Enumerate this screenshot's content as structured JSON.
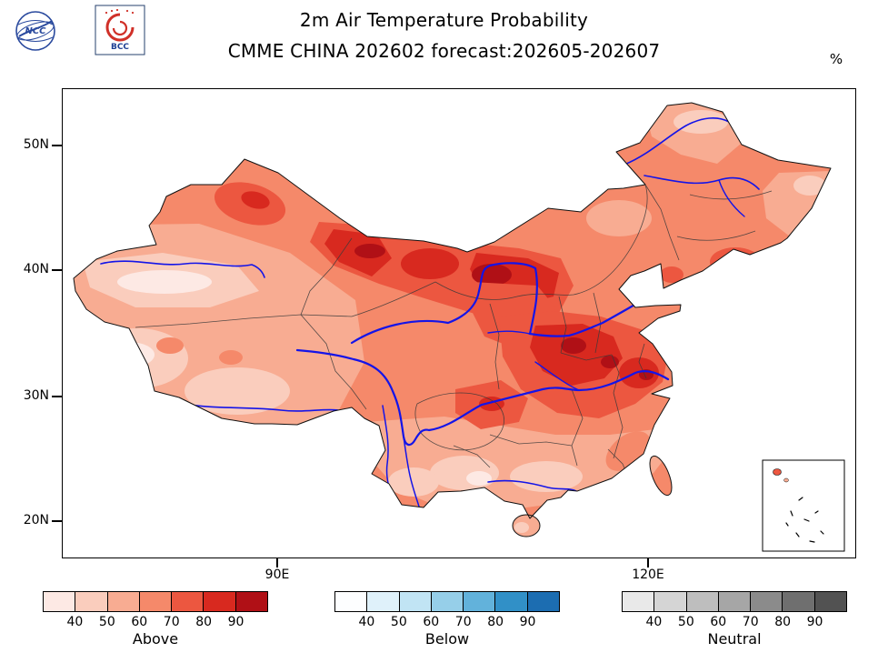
{
  "header": {
    "title_line1": "2m Air Temperature Probability",
    "title_line2": "CMME CHINA 202602 forecast:202605-202607",
    "unit_label": "%",
    "logos": [
      "NCC",
      "BCC"
    ]
  },
  "map_axes": {
    "y_tick_labels": [
      "50N",
      "40N",
      "30N",
      "20N"
    ],
    "x_tick_labels": [
      "90E",
      "120E"
    ]
  },
  "colorbars": [
    {
      "label": "Above",
      "tick_labels": [
        "40",
        "50",
        "60",
        "70",
        "80",
        "90"
      ],
      "colors": [
        "#FDE9E4",
        "#FACDBD",
        "#F8AC92",
        "#F5896A",
        "#EC5740",
        "#D8291F",
        "#B01016"
      ]
    },
    {
      "label": "Below",
      "tick_labels": [
        "40",
        "50",
        "60",
        "70",
        "80",
        "90"
      ],
      "colors": [
        "#FDFEFF",
        "#DFF1FA",
        "#C1E4F4",
        "#96CFE9",
        "#62B2DB",
        "#3190C7",
        "#1C6DB1"
      ]
    },
    {
      "label": "Neutral",
      "tick_labels": [
        "40",
        "50",
        "60",
        "70",
        "80",
        "90"
      ],
      "colors": [
        "#E9E9E9",
        "#D5D5D5",
        "#BEBEBE",
        "#A6A6A6",
        "#8B8B8B",
        "#6F6F6F",
        "#525252"
      ]
    }
  ],
  "chart_data": {
    "type": "heatmap",
    "title": "2m Air Temperature Probability",
    "subtitle": "CMME CHINA 202602 forecast:202605-202607",
    "unit": "%",
    "region": "China",
    "x_axis_ticks": [
      "90E",
      "120E"
    ],
    "y_axis_ticks": [
      "20N",
      "30N",
      "40N",
      "50N"
    ],
    "legend_position": "bottom",
    "legend": [
      {
        "name": "Above",
        "tick_values": [
          40,
          50,
          60,
          70,
          80,
          90
        ],
        "palette": [
          "#FDE9E4",
          "#FACDBD",
          "#F8AC92",
          "#F5896A",
          "#EC5740",
          "#D8291F",
          "#B01016"
        ]
      },
      {
        "name": "Below",
        "tick_values": [
          40,
          50,
          60,
          70,
          80,
          90
        ],
        "palette": [
          "#FDFEFF",
          "#DFF1FA",
          "#C1E4F4",
          "#96CFE9",
          "#62B2DB",
          "#3190C7",
          "#1C6DB1"
        ]
      },
      {
        "name": "Neutral",
        "tick_values": [
          40,
          50,
          60,
          70,
          80,
          90
        ],
        "palette": [
          "#E9E9E9",
          "#D5D5D5",
          "#BEBEBE",
          "#A6A6A6",
          "#8B8B8B",
          "#6F6F6F",
          "#525252"
        ]
      }
    ],
    "summary": "All of the mapped China domain is shaded in the Above (red) category. Highest probabilities (80 to >90%) over north-central China (Gansu/Inner Mongolia border) and east-central China; lightest shading (40-50% or less) over western Tibet, the southern Tarim Basin, the far northeast tip and parts of far southern China."
  }
}
